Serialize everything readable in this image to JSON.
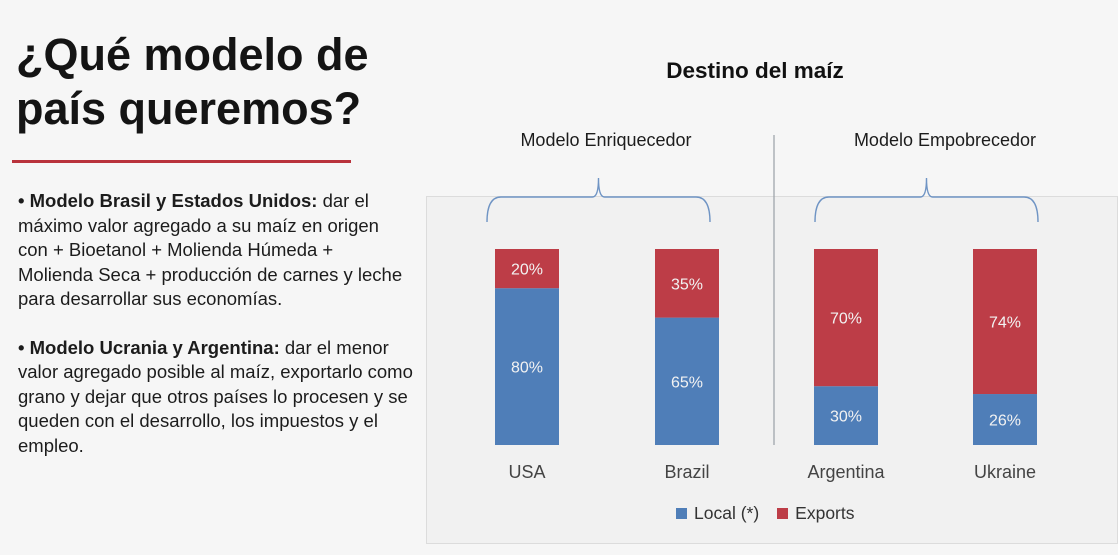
{
  "slide": {
    "title": "¿Qué modelo de país queremos?",
    "bullets": [
      {
        "bold": "• Modelo Brasil y Estados Unidos:",
        "text": " dar el máximo valor agregado a su maíz en origen con + Bioetanol + Molienda Húmeda + Molienda Seca + producción de carnes y leche para desarrollar sus economías."
      },
      {
        "bold": "• Modelo Ucrania y Argentina:",
        "text": " dar el menor valor agregado posible al maíz, exportarlo como grano y dejar que otros países lo procesen y se queden con el desarrollo, los impuestos y el empleo."
      }
    ]
  },
  "chart_data": {
    "type": "bar",
    "stacked": true,
    "title": "Destino del maíz",
    "categories": [
      "USA",
      "Brazil",
      "Argentina",
      "Ukraine"
    ],
    "series": [
      {
        "name": "Local (*)",
        "values": [
          80,
          65,
          30,
          26
        ],
        "labels": [
          "80%",
          "65%",
          "30%",
          "26%"
        ],
        "color": "#4f7eb8"
      },
      {
        "name": "Exports",
        "values": [
          20,
          35,
          70,
          74
        ],
        "labels": [
          "20%",
          "35%",
          "70%",
          "74%"
        ],
        "color": "#bd3d47"
      }
    ],
    "groups": [
      {
        "label": "Modelo Enriquecedor",
        "categories": [
          "USA",
          "Brazil"
        ]
      },
      {
        "label": "Modelo Empobrecedor",
        "categories": [
          "Argentina",
          "Ukraine"
        ]
      }
    ],
    "ylim": [
      0,
      100
    ],
    "legend_position": "bottom",
    "grid": false
  }
}
